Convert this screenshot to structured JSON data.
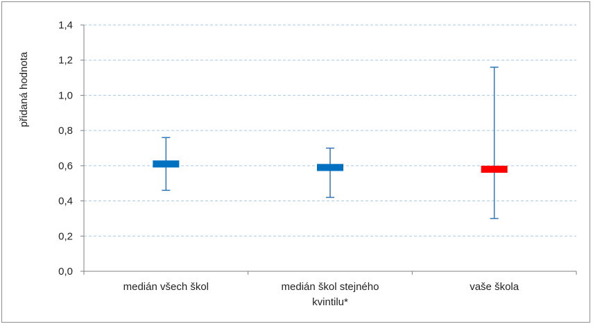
{
  "chart_data": {
    "type": "range",
    "title": "",
    "ylabel": "přidaná hodnota",
    "xlabel": "",
    "ylim": [
      0,
      1.4
    ],
    "yticks": [
      "0,0",
      "0,2",
      "0,4",
      "0,6",
      "0,8",
      "1,0",
      "1,2",
      "1,4"
    ],
    "grid": true,
    "categories": [
      [
        "medián všech škol"
      ],
      [
        "medián škol stejného",
        "kvintilu*"
      ],
      [
        "vaše škola"
      ]
    ],
    "series": [
      {
        "category": "medián všech škol",
        "box_low": 0.59,
        "box_high": 0.63,
        "whisker_low": 0.46,
        "whisker_high": 0.76,
        "color": "#0070c0"
      },
      {
        "category": "medián škol stejného kvintilu*",
        "box_low": 0.57,
        "box_high": 0.61,
        "whisker_low": 0.42,
        "whisker_high": 0.7,
        "color": "#0070c0"
      },
      {
        "category": "vaše škola",
        "box_low": 0.56,
        "box_high": 0.6,
        "whisker_low": 0.3,
        "whisker_high": 1.16,
        "color": "#ff0000"
      }
    ],
    "gridColor": "#a6c8e8",
    "axisColor": "#7f7f7f"
  }
}
